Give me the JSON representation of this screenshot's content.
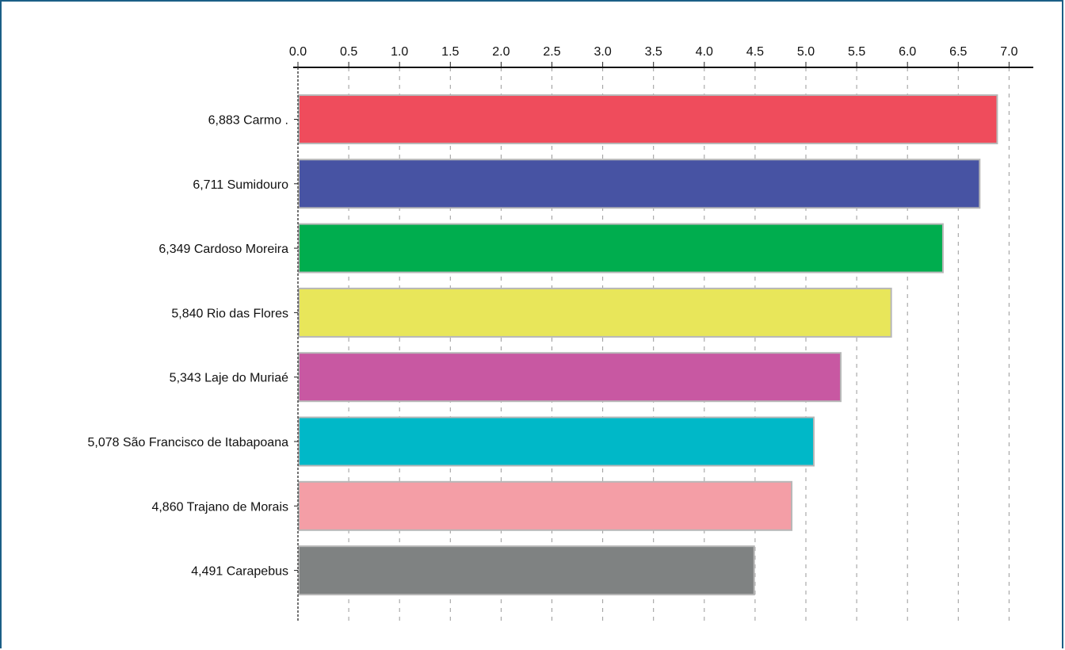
{
  "chart_data": {
    "type": "bar",
    "orientation": "horizontal",
    "x_axis_position": "top",
    "xlim": [
      0,
      7.0
    ],
    "grid": "vertical-dashed",
    "x_ticks": [
      "0.0",
      "0.5",
      "1.0",
      "1.5",
      "2.0",
      "2.5",
      "3.0",
      "3.5",
      "4.0",
      "4.5",
      "5.0",
      "5.5",
      "6.0",
      "6.5",
      "7.0"
    ],
    "tick_values": [
      0,
      0.5,
      1.0,
      1.5,
      2.0,
      2.5,
      3.0,
      3.5,
      4.0,
      4.5,
      5.0,
      5.5,
      6.0,
      6.5,
      7.0
    ],
    "categories": [
      "6,883 Carmo  .",
      "6,711 Sumidouro",
      "6,349 Cardoso Moreira",
      "5,840 Rio das Flores",
      "5,343 Laje do Muriaé",
      "5,078 São Francisco de Itabapoana",
      "4,860 Trajano de Morais",
      "4,491 Carapebus"
    ],
    "values": [
      6.883,
      6.711,
      6.349,
      5.84,
      5.343,
      5.078,
      4.86,
      4.491
    ],
    "colors": [
      "#ef4c5c",
      "#4753a3",
      "#00ad4e",
      "#e8e65a",
      "#c858a2",
      "#00b8c8",
      "#f49ea6",
      "#7f8282"
    ]
  }
}
